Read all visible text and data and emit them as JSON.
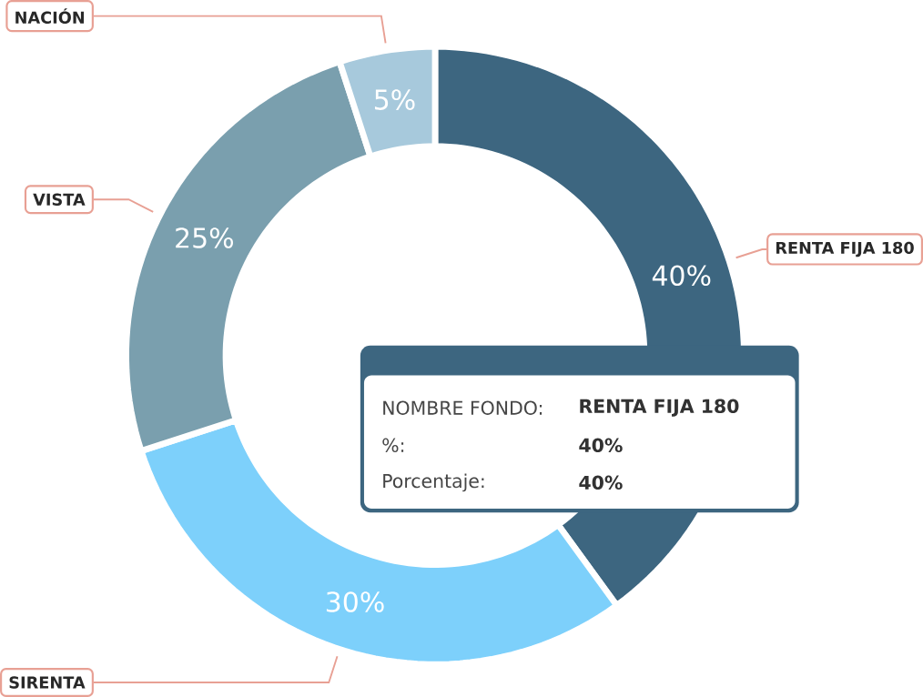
{
  "chart_data": {
    "type": "donut",
    "categories": [
      "RENTA FIJA 180",
      "SIRENTA",
      "VISTA",
      "NACIÓN"
    ],
    "values": [
      40,
      30,
      25,
      5
    ],
    "colors": [
      "#3d6680",
      "#7dd0fb",
      "#7a9fae",
      "#a7c9dc"
    ],
    "value_labels": [
      "40%",
      "30%",
      "25%",
      "5%"
    ],
    "annotations": [
      "NOMBRE FONDO:",
      "RENTA FIJA 180",
      "%:",
      "40%",
      "Porcentaje:",
      "40%"
    ]
  }
}
